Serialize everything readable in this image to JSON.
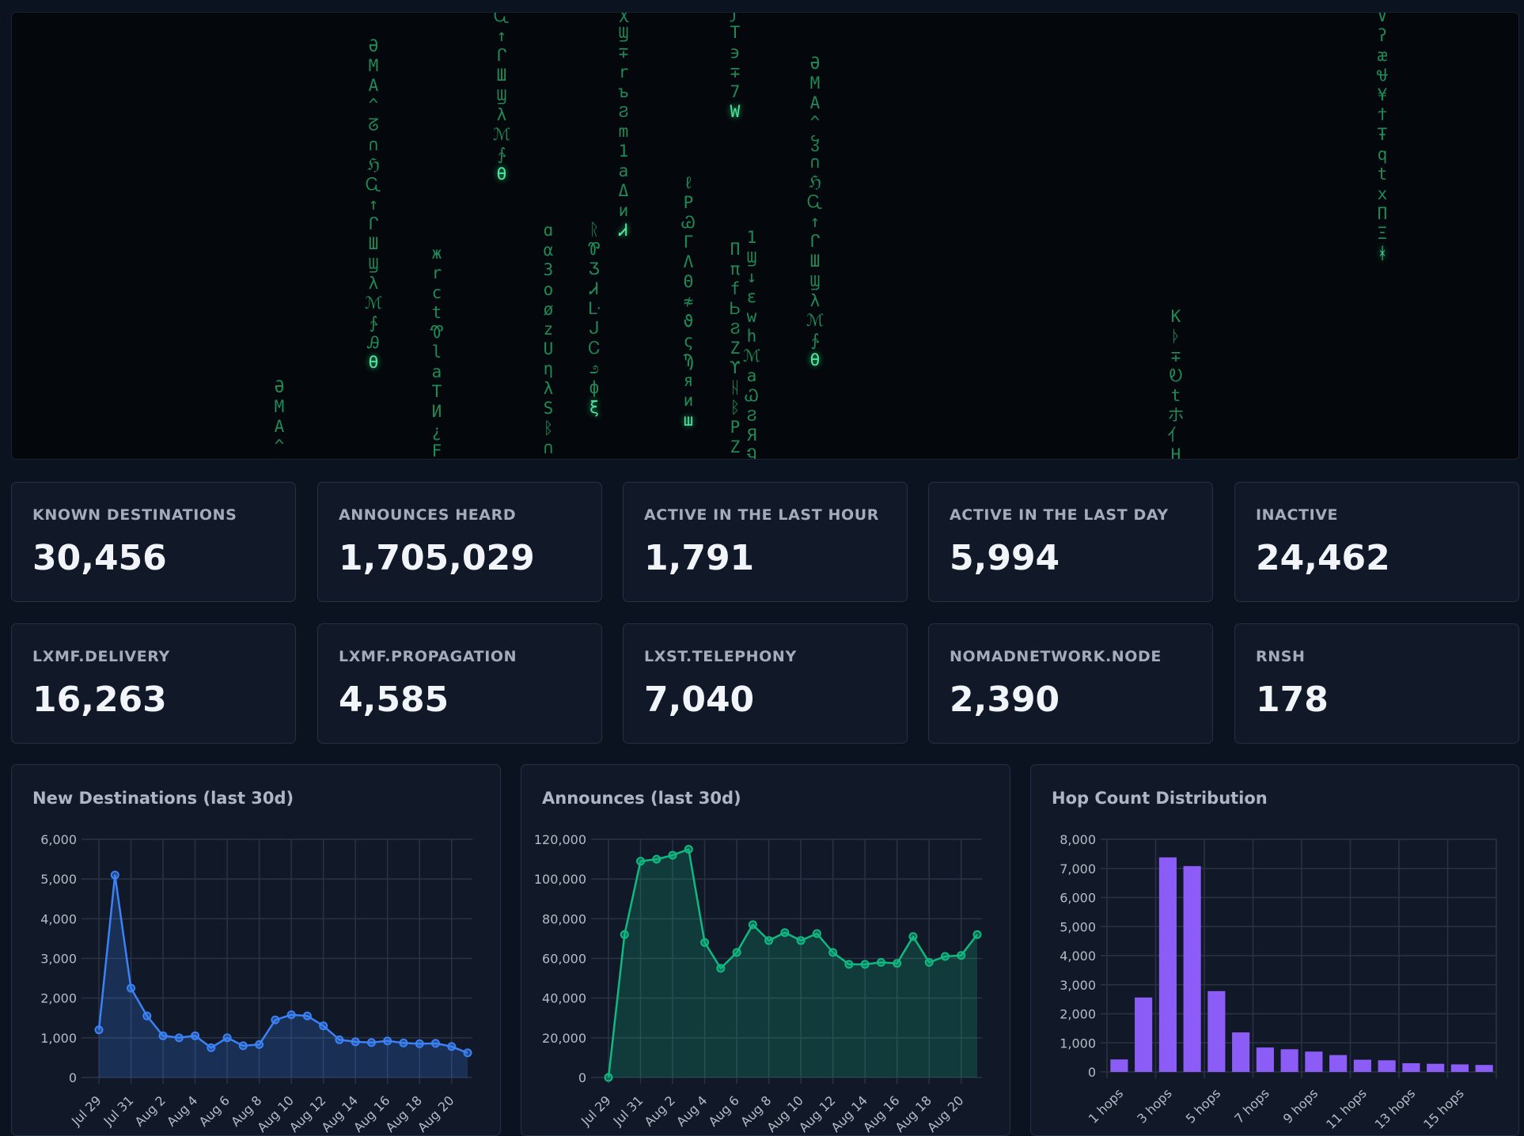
{
  "stats": [
    {
      "label": "KNOWN DESTINATIONS",
      "value": "30,456"
    },
    {
      "label": "ANNOUNCES HEARD",
      "value": "1,705,029"
    },
    {
      "label": "ACTIVE IN THE LAST HOUR",
      "value": "1,791"
    },
    {
      "label": "ACTIVE IN THE LAST DAY",
      "value": "5,994"
    },
    {
      "label": "INACTIVE",
      "value": "24,462"
    },
    {
      "label": "LXMF.DELIVERY",
      "value": "16,263"
    },
    {
      "label": "LXMF.PROPAGATION",
      "value": "4,585"
    },
    {
      "label": "LXST.TELEPHONY",
      "value": "7,040"
    },
    {
      "label": "NOMADNETWORK.NODE",
      "value": "2,390"
    },
    {
      "label": "RNSH",
      "value": "178"
    }
  ],
  "matrix_columns": [
    "ӘMA^ჴ",
    "ӘMA^ᘔ∩ℌᏩ↑ᒋШϢλℳ∱ᎯѲ",
    "жrctᏡlaTИ¿F",
    "Ꮹ↑ᒋШϢλℳ∱Ѳ",
    "ɑα3oøzUηλSᛒ∩",
    "ꭓϢ∓rъϨm1aΔиᏗ",
    "ᚱᏈƷᏗᒷᒍᏟ೨фξ",
    "ℓPᏊΓΛΘ≉ϑςϠяиш",
    "ϝT϶∓7W",
    "ΠπfᏏϨZϒᚺᛒPZ",
    "1Ϣ↓εwhℳaᏇϨЯᏄ",
    "ӘMA^ჴ∩ℌᏩ↑ᒋШϢλℳ∱Ѳ",
    "Kᚦ∓Ꭷtホ亻H",
    "∨ʔæᏠ¥ϯŦqtxΠΞᚼ"
  ],
  "charts": {
    "new_destinations": {
      "title": "New Destinations (last 30d)",
      "color": "#3b82f6",
      "chart_data": {
        "type": "line",
        "title": "New Destinations (last 30d)",
        "xlabel": "",
        "ylabel": "",
        "x_tick_labels": [
          "Jul 29",
          "Jul 31",
          "Aug 2",
          "Aug 4",
          "Aug 6",
          "Aug 8",
          "Aug 10",
          "Aug 12",
          "Aug 14",
          "Aug 16",
          "Aug 18",
          "Aug 20"
        ],
        "y_tick_labels": [
          "0",
          "1,000",
          "2,000",
          "3,000",
          "4,000",
          "5,000",
          "6,000"
        ],
        "ylim": [
          0,
          6000
        ],
        "x": [
          "Jul 29",
          "Jul 30",
          "Jul 31",
          "Aug 1",
          "Aug 2",
          "Aug 3",
          "Aug 4",
          "Aug 5",
          "Aug 6",
          "Aug 7",
          "Aug 8",
          "Aug 9",
          "Aug 10",
          "Aug 11",
          "Aug 12",
          "Aug 13",
          "Aug 14",
          "Aug 15",
          "Aug 16",
          "Aug 17",
          "Aug 18",
          "Aug 19",
          "Aug 20",
          "Aug 21"
        ],
        "values": [
          1200,
          5100,
          2250,
          1550,
          1050,
          1000,
          1050,
          750,
          1000,
          800,
          830,
          1450,
          1580,
          1550,
          1300,
          950,
          900,
          880,
          920,
          870,
          850,
          860,
          780,
          620
        ],
        "grid": true,
        "legend": "none"
      }
    },
    "announces": {
      "title": "Announces (last 30d)",
      "color": "#10b981",
      "chart_data": {
        "type": "line",
        "title": "Announces (last 30d)",
        "xlabel": "",
        "ylabel": "",
        "x_tick_labels": [
          "Jul 29",
          "Jul 31",
          "Aug 2",
          "Aug 4",
          "Aug 6",
          "Aug 8",
          "Aug 10",
          "Aug 12",
          "Aug 14",
          "Aug 16",
          "Aug 18",
          "Aug 20"
        ],
        "y_tick_labels": [
          "0",
          "20,000",
          "40,000",
          "60,000",
          "80,000",
          "100,000",
          "120,000"
        ],
        "ylim": [
          0,
          120000
        ],
        "x": [
          "Jul 29",
          "Jul 30",
          "Jul 31",
          "Aug 1",
          "Aug 2",
          "Aug 3",
          "Aug 4",
          "Aug 5",
          "Aug 6",
          "Aug 7",
          "Aug 8",
          "Aug 9",
          "Aug 10",
          "Aug 11",
          "Aug 12",
          "Aug 13",
          "Aug 14",
          "Aug 15",
          "Aug 16",
          "Aug 17",
          "Aug 18",
          "Aug 19",
          "Aug 20",
          "Aug 21"
        ],
        "values": [
          0,
          72000,
          109000,
          110000,
          112000,
          115000,
          68000,
          55000,
          63000,
          77000,
          69000,
          73000,
          69000,
          72500,
          63000,
          57000,
          57000,
          58000,
          57500,
          71000,
          58000,
          61000,
          61500,
          72000
        ],
        "grid": true,
        "legend": "none"
      }
    },
    "hop_count": {
      "title": "Hop Count Distribution",
      "color": "#8b5cf6",
      "chart_data": {
        "type": "bar",
        "title": "Hop Count Distribution",
        "xlabel": "",
        "ylabel": "",
        "categories": [
          "1 hops",
          "2 hops",
          "3 hops",
          "4 hops",
          "5 hops",
          "6 hops",
          "7 hops",
          "8 hops",
          "9 hops",
          "10 hops",
          "11 hops",
          "12 hops",
          "13 hops",
          "14 hops",
          "15 hops",
          "16 hops"
        ],
        "visible_tick_labels": [
          "1 hops",
          "3 hops",
          "5 hops",
          "7 hops",
          "9 hops",
          "11 hops",
          "13 hops",
          "15 hops"
        ],
        "values": [
          430,
          2560,
          7380,
          7080,
          2780,
          1360,
          840,
          780,
          700,
          580,
          420,
          400,
          300,
          280,
          260,
          240
        ],
        "y_tick_labels": [
          "0",
          "1,000",
          "2,000",
          "3,000",
          "4,000",
          "5,000",
          "6,000",
          "7,000",
          "8,000"
        ],
        "ylim": [
          0,
          8000
        ],
        "grid": true,
        "legend": "none"
      }
    }
  }
}
